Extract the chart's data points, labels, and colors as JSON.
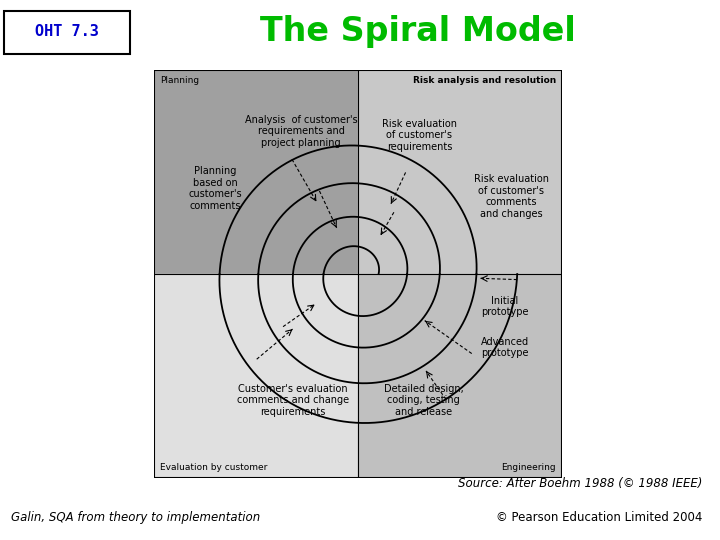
{
  "title": "The Spiral Model",
  "oht_label": "OHT 7.3",
  "title_color": "#00bb00",
  "oht_color": "#0000cc",
  "bg_color": "#ffffff",
  "quadrant_colors": {
    "top_left": "#a0a0a0",
    "top_right": "#c8c8c8",
    "bottom_left": "#e0e0e0",
    "bottom_right": "#c0c0c0"
  },
  "quadrant_labels": {
    "top_left": "Planning",
    "top_right": "Risk analysis and resolution",
    "bottom_left": "Evaluation by customer",
    "bottom_right": "Engineering"
  },
  "source_text": "Source: After Boehm 1988 (© 1988 IEEE)",
  "footer_left": "Galin, SQA from theory to implementation",
  "footer_right": "© Pearson Education Limited 2004"
}
